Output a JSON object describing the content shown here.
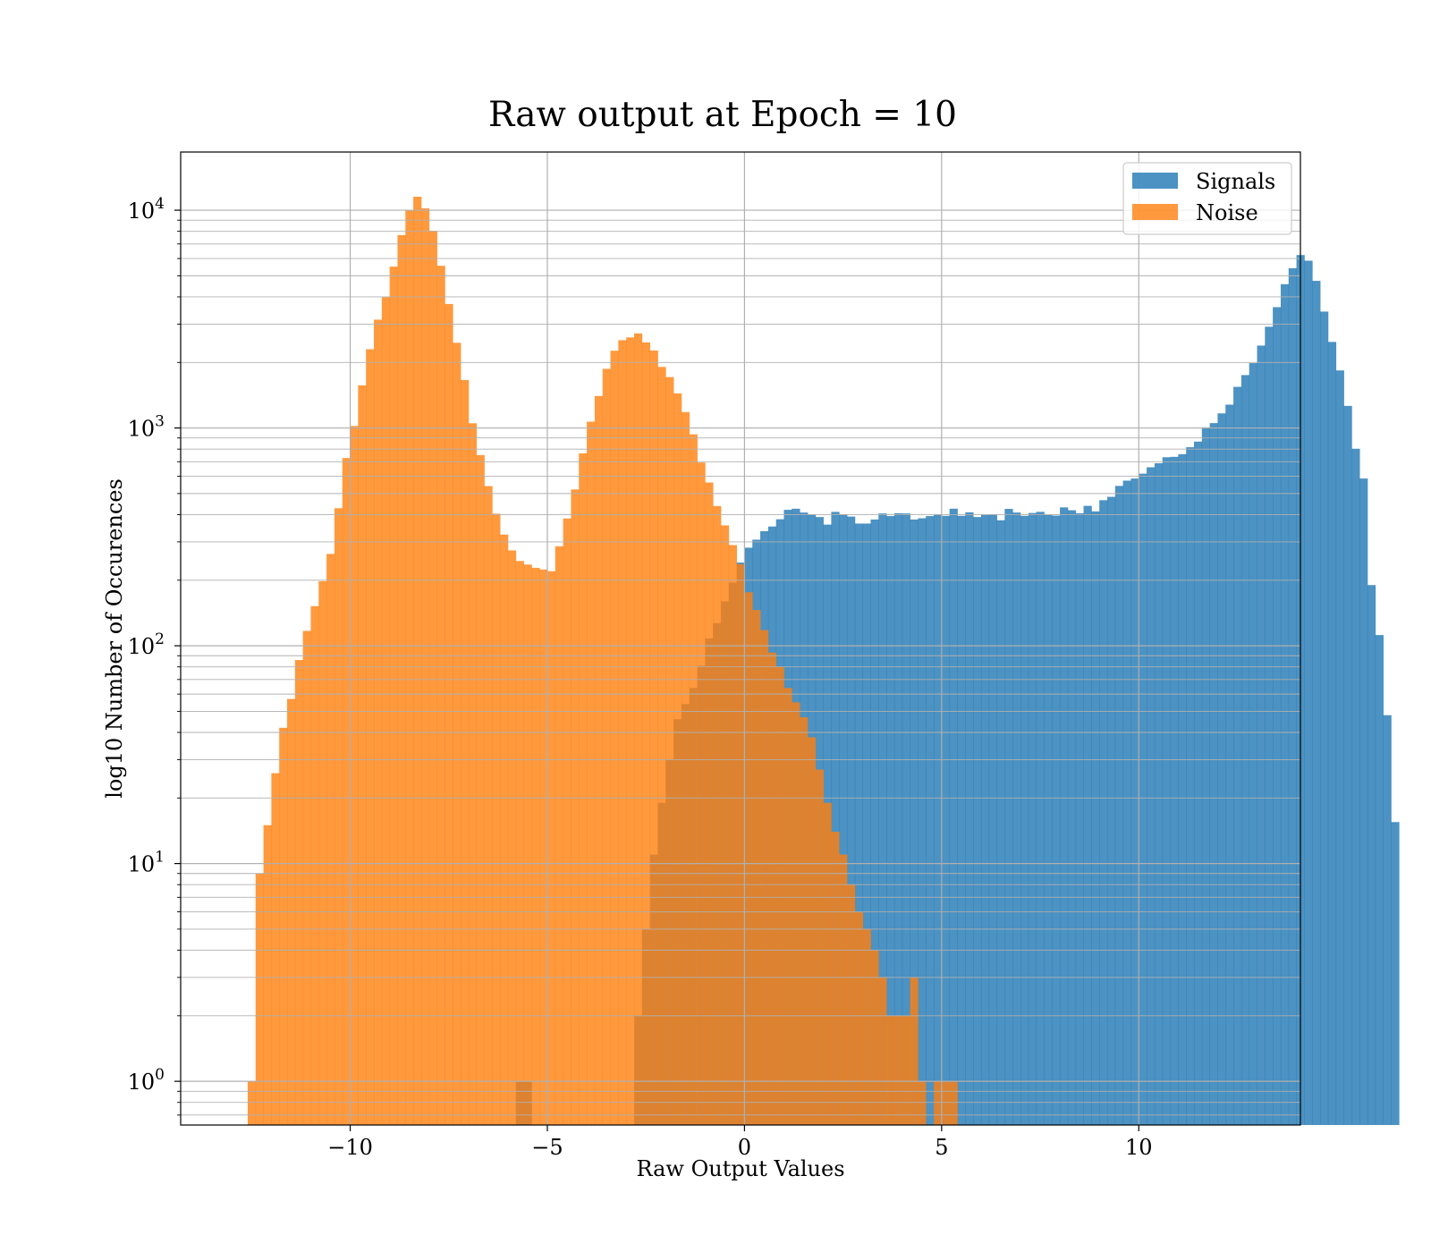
{
  "chart_data": {
    "type": "histogram",
    "title": "Raw output at Epoch = 10",
    "xlabel": "Raw Output Values",
    "ylabel": "log10 Number of Occurences",
    "xlim": [
      -14.3,
      14.1
    ],
    "ylim": [
      0.63,
      18500
    ],
    "yscale": "log",
    "grid": true,
    "legend_position": "top-right",
    "x_ticks": [
      {
        "value": -10,
        "label": "−10"
      },
      {
        "value": -5,
        "label": "−5"
      },
      {
        "value": 0,
        "label": "0"
      },
      {
        "value": 5,
        "label": "5"
      },
      {
        "value": 10,
        "label": "10"
      }
    ],
    "y_ticks": [
      {
        "value": 1,
        "base": "10",
        "exp": "0"
      },
      {
        "value": 10,
        "base": "10",
        "exp": "1"
      },
      {
        "value": 100,
        "base": "10",
        "exp": "2"
      },
      {
        "value": 1000,
        "base": "10",
        "exp": "3"
      },
      {
        "value": 10000,
        "base": "10",
        "exp": "4"
      }
    ],
    "series": [
      {
        "name": "Signals",
        "color": "#1f77b4",
        "opacity": 0.8,
        "x_start": -5.8,
        "bin_width": 0.2,
        "counts": [
          1,
          1,
          0,
          0,
          0,
          0,
          0,
          0,
          0,
          0,
          0,
          0,
          0,
          0,
          0,
          2,
          5,
          11,
          19,
          30,
          46,
          54,
          64,
          81,
          108,
          127,
          160,
          195,
          241,
          282,
          307,
          336,
          353,
          381,
          421,
          426,
          409,
          400,
          390,
          360,
          412,
          400,
          392,
          364,
          364,
          380,
          405,
          394,
          406,
          405,
          380,
          385,
          394,
          401,
          395,
          426,
          395,
          410,
          390,
          399,
          401,
          377,
          425,
          409,
          395,
          407,
          412,
          399,
          396,
          432,
          419,
          406,
          439,
          414,
          466,
          483,
          542,
          573,
          586,
          617,
          660,
          689,
          734,
          737,
          758,
          816,
          866,
          1007,
          1053,
          1167,
          1280,
          1545,
          1750,
          1985,
          2390,
          2917,
          3588,
          4574,
          5416,
          6225,
          5864,
          4738,
          3424,
          2484,
          1838,
          1263,
          803,
          586,
          190,
          112,
          48,
          15.5
        ]
      },
      {
        "name": "Noise",
        "color": "#ff7f0e",
        "opacity": 0.8,
        "x_start": -12.6,
        "bin_width": 0.2,
        "counts": [
          1,
          9,
          15,
          26,
          42,
          57,
          86,
          117,
          152,
          198,
          264,
          428,
          728,
          1021,
          1569,
          2300,
          3143,
          3983,
          5507,
          7688,
          9999,
          11532,
          10202,
          8047,
          5556,
          3710,
          2461,
          1661,
          1051,
          751,
          541,
          404,
          324,
          274,
          245,
          236,
          228,
          224,
          220,
          286,
          384,
          522,
          765,
          1069,
          1402,
          1869,
          2263,
          2530,
          2605,
          2718,
          2471,
          2269,
          1907,
          1713,
          1441,
          1183,
          935,
          694,
          562,
          438,
          357,
          290,
          237,
          176,
          146,
          118,
          93,
          80,
          64,
          55,
          47,
          38,
          27,
          19,
          14,
          11,
          8,
          6,
          5,
          4,
          3,
          2,
          2,
          2,
          3,
          1,
          0,
          1,
          1,
          1
        ]
      }
    ]
  }
}
